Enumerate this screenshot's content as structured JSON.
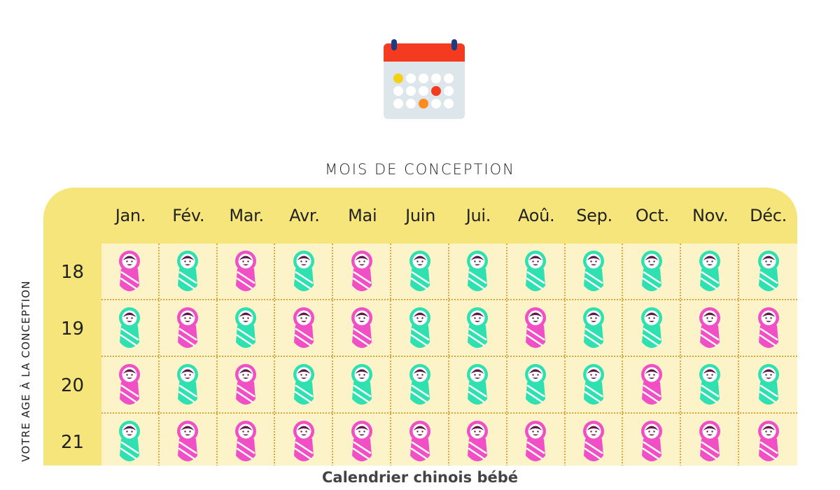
{
  "header": {
    "icon": "calendar-icon",
    "title": "MOIS DE CONCEPTION",
    "side_label": "VOTRE AGE À LA CONCEPTION",
    "caption": "Calendrier chinois bébé"
  },
  "colors": {
    "panel": "#f5e57b",
    "grid": "#fcf4c8",
    "girl": "#f04fc6",
    "boy": "#2fe0b0"
  },
  "months": [
    "Jan.",
    "Fév.",
    "Mar.",
    "Avr.",
    "Mai",
    "Juin",
    "Jui.",
    "Aoû.",
    "Sep.",
    "Oct.",
    "Nov.",
    "Déc."
  ],
  "rows": [
    {
      "age": "18",
      "cells": [
        "girl",
        "boy",
        "girl",
        "boy",
        "girl",
        "boy",
        "boy",
        "boy",
        "boy",
        "boy",
        "boy",
        "boy"
      ]
    },
    {
      "age": "19",
      "cells": [
        "boy",
        "girl",
        "boy",
        "girl",
        "girl",
        "boy",
        "boy",
        "girl",
        "boy",
        "boy",
        "girl",
        "girl"
      ]
    },
    {
      "age": "20",
      "cells": [
        "girl",
        "boy",
        "girl",
        "boy",
        "boy",
        "boy",
        "boy",
        "boy",
        "boy",
        "girl",
        "boy",
        "boy"
      ]
    },
    {
      "age": "21",
      "cells": [
        "boy",
        "girl",
        "girl",
        "girl",
        "girl",
        "girl",
        "girl",
        "girl",
        "girl",
        "girl",
        "girl",
        "girl"
      ]
    }
  ]
}
